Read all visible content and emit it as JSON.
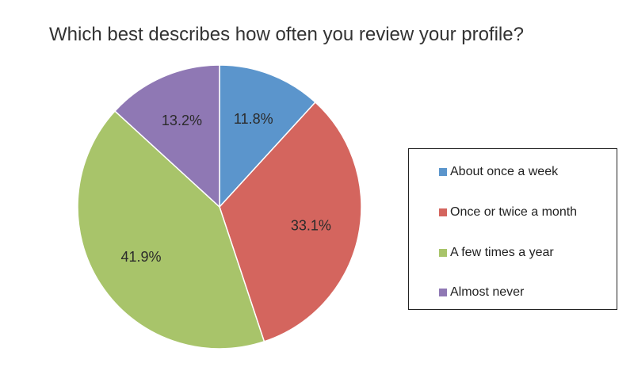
{
  "chart_data": {
    "type": "pie",
    "title": "Which best describes how often you review your profile?",
    "categories": [
      "About once a week",
      "Once or twice a month",
      "A few times a year",
      "Almost never"
    ],
    "values": [
      11.8,
      33.1,
      41.9,
      13.2
    ],
    "data_labels": [
      "11.8%",
      "33.1%",
      "41.9%",
      "13.2%"
    ],
    "colors": [
      "#5b95cc",
      "#d4655e",
      "#a8c46a",
      "#8f78b4"
    ],
    "legend_position": "right",
    "start_angle": "12 o'clock",
    "direction": "clockwise"
  }
}
